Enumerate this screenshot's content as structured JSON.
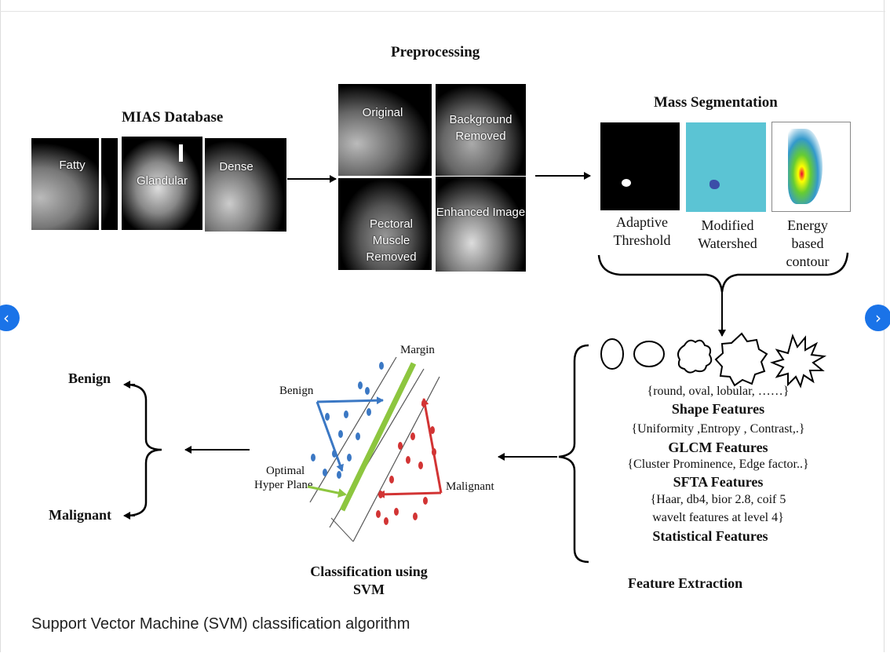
{
  "diagram": {
    "preprocessing": {
      "title": "Preprocessing",
      "images": [
        "Original",
        "Background Removed",
        "Pectoral Muscle Removed",
        "Enhanced Image"
      ]
    },
    "mias": {
      "title": "MIAS Database",
      "images": [
        "Fatty",
        "Glandular",
        "Dense"
      ]
    },
    "segmentation": {
      "title": "Mass Segmentation",
      "labels": [
        "Adaptive Threshold",
        "Modified Watershed",
        "Energy based contour"
      ]
    },
    "features": {
      "shape_examples": "{round, oval, lobular, ……}",
      "shape_title": "Shape Features",
      "glcm_examples": "{Uniformity ,Entropy , Contrast,.}",
      "glcm_title": "GLCM Features",
      "sfta_examples": "{Cluster Prominence, Edge factor..}",
      "sfta_title": "SFTA Features",
      "stat_examples_1": "{Haar, db4,  bior 2.8, coif 5",
      "stat_examples_2": "wavelt features at level 4}",
      "stat_title": "Statistical Features",
      "section_title": "Feature Extraction"
    },
    "svm": {
      "margin": "Margin",
      "benign": "Benign",
      "optimal_1": "Optimal",
      "optimal_2": "Hyper Plane",
      "malignant": "Malignant",
      "title_1": "Classification using",
      "title_2": "SVM"
    },
    "outputs": {
      "benign": "Benign",
      "malignant": "Malignant"
    }
  },
  "caption": "Support Vector Machine (SVM) classification algorithm",
  "colors": {
    "nav_button": "#1a73e8",
    "benign_class": "#3b78c4",
    "malignant_class": "#d23434",
    "hyperplane": "#8dc63f",
    "watershed_bg": "#5bc4d4"
  },
  "icons": {
    "prev": "chevron-left-icon",
    "next": "chevron-right-icon"
  }
}
